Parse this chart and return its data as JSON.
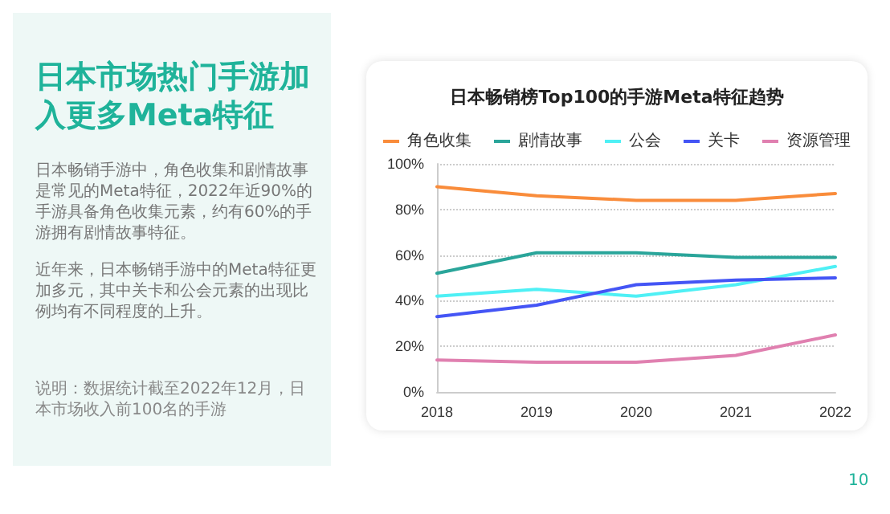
{
  "chart_data": {
    "type": "line",
    "title": "日本市场热门手游加入更多Meta特征",
    "subtitle": "日本畅销榜Top100的手游Meta特征趋势",
    "annotations": [
      "日本畅销手游中，角色收集和剧情故事是常见的Meta特征，2022年近90%的手游具备角色收集元素，约有60%的手游拥有剧情故事特征。",
      "近年来，日本畅销手游中的Meta特征更加多元，其中关卡和公会元素的出现比例均有不同程度的上升。",
      "说明：数据统计截至2022年12月，日本市场收入前100名的手游",
      "10"
    ],
    "categories": [
      "2018",
      "2019",
      "2020",
      "2021",
      "2022"
    ],
    "series": [
      {
        "name": "角色收集",
        "color": "#f98c3b",
        "values": [
          90,
          86,
          84,
          84,
          87
        ]
      },
      {
        "name": "剧情故事",
        "color": "#2aa59a",
        "values": [
          52,
          61,
          61,
          59,
          59
        ]
      },
      {
        "name": "公会",
        "color": "#4ff0f5",
        "values": [
          42,
          45,
          42,
          47,
          55
        ]
      },
      {
        "name": "关卡",
        "color": "#4455f5",
        "values": [
          33,
          38,
          47,
          49,
          50
        ]
      },
      {
        "name": "资源管理",
        "color": "#e080b0",
        "values": [
          14,
          13,
          13,
          16,
          25
        ]
      }
    ],
    "ylim": [
      0,
      100
    ],
    "yticks": [
      {
        "value": 0,
        "label": "0%"
      },
      {
        "value": 20,
        "label": "20%"
      },
      {
        "value": 40,
        "label": "40%"
      },
      {
        "value": 60,
        "label": "60%"
      },
      {
        "value": 80,
        "label": "80%"
      },
      {
        "value": 100,
        "label": "100%"
      }
    ],
    "grid": "y",
    "legend": "top",
    "marker": "none",
    "line_style": "solid"
  }
}
